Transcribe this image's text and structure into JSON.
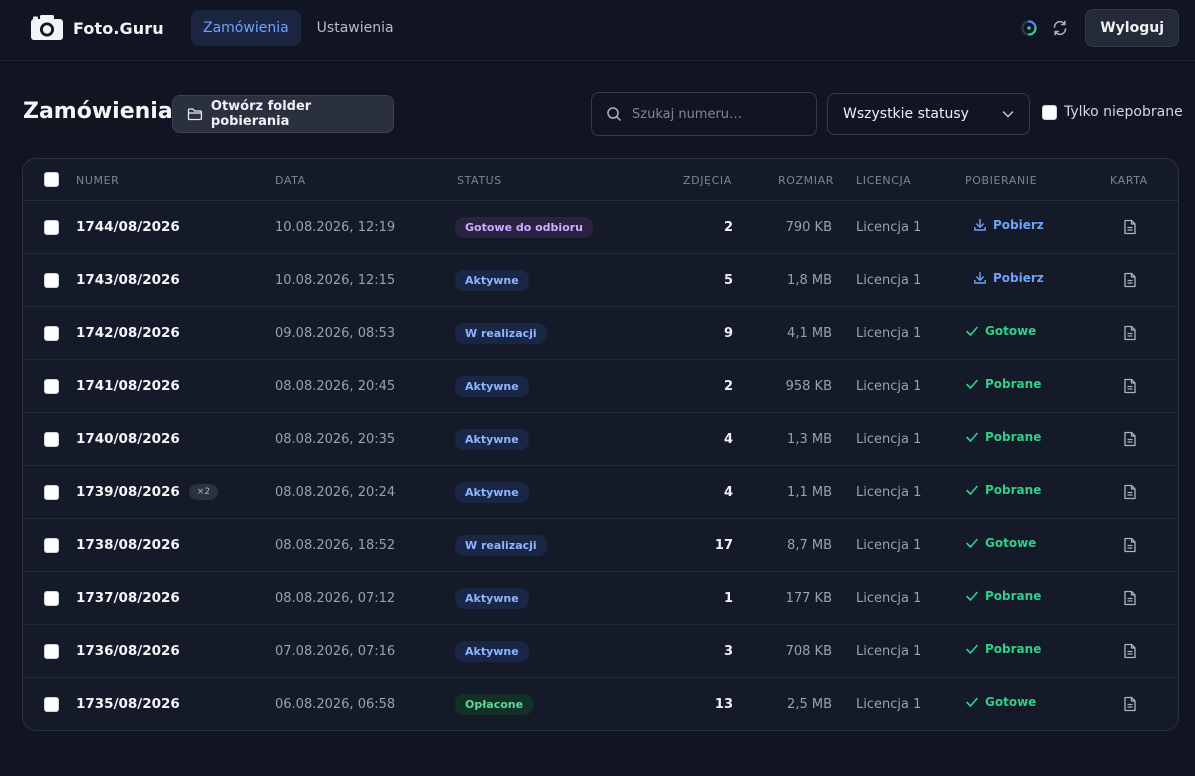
{
  "header": {
    "brand": "Foto.Guru",
    "nav": [
      {
        "label": "Zamówienia",
        "active": true
      },
      {
        "label": "Ustawienia",
        "active": false
      }
    ],
    "logout_label": "Wyloguj"
  },
  "toolbar": {
    "title": "Zamówienia",
    "folder_button": "Otwórz folder pobierania",
    "search_placeholder": "Szukaj numeru…",
    "status_filter": "Wszystkie statusy",
    "only_not_downloaded": "Tylko niepobrane"
  },
  "table": {
    "columns": [
      "NUMER",
      "DATA",
      "STATUS",
      "ZDJĘCIA",
      "ROZMIAR",
      "LICENCJA",
      "POBIERANIE",
      "KARTA"
    ],
    "rows": [
      {
        "number": "1744/08/2026",
        "date": "10.08.2026, 12:19",
        "status": "Gotowe do odbioru",
        "status_type": "ready",
        "photos": "2",
        "size": "790 KB",
        "license": "Licencja 1",
        "download": "Pobierz",
        "download_type": "action"
      },
      {
        "number": "1743/08/2026",
        "date": "10.08.2026, 12:15",
        "status": "Aktywne",
        "status_type": "active",
        "photos": "5",
        "size": "1,8 MB",
        "license": "Licencja 1",
        "download": "Pobierz",
        "download_type": "action"
      },
      {
        "number": "1742/08/2026",
        "date": "09.08.2026, 08:53",
        "status": "W realizacji",
        "status_type": "active",
        "photos": "9",
        "size": "4,1 MB",
        "license": "Licencja 1",
        "download": "Gotowe",
        "download_type": "done"
      },
      {
        "number": "1741/08/2026",
        "date": "08.08.2026, 20:45",
        "status": "Aktywne",
        "status_type": "active",
        "photos": "2",
        "size": "958 KB",
        "license": "Licencja 1",
        "download": "Pobrane",
        "download_type": "done"
      },
      {
        "number": "1740/08/2026",
        "date": "08.08.2026, 20:35",
        "status": "Aktywne",
        "status_type": "active",
        "photos": "4",
        "size": "1,3 MB",
        "license": "Licencja 1",
        "download": "Pobrane",
        "download_type": "done"
      },
      {
        "number": "1739/08/2026",
        "multi": "×2",
        "date": "08.08.2026, 20:24",
        "status": "Aktywne",
        "status_type": "active",
        "photos": "4",
        "size": "1,1 MB",
        "license": "Licencja 1",
        "download": "Pobrane",
        "download_type": "done"
      },
      {
        "number": "1738/08/2026",
        "date": "08.08.2026, 18:52",
        "status": "W realizacji",
        "status_type": "active",
        "photos": "17",
        "size": "8,7 MB",
        "license": "Licencja 1",
        "download": "Gotowe",
        "download_type": "done"
      },
      {
        "number": "1737/08/2026",
        "date": "08.08.2026, 07:12",
        "status": "Aktywne",
        "status_type": "active",
        "photos": "1",
        "size": "177 KB",
        "license": "Licencja 1",
        "download": "Pobrane",
        "download_type": "done"
      },
      {
        "number": "1736/08/2026",
        "date": "07.08.2026, 07:16",
        "status": "Aktywne",
        "status_type": "active",
        "photos": "3",
        "size": "708 KB",
        "license": "Licencja 1",
        "download": "Pobrane",
        "download_type": "done"
      },
      {
        "number": "1735/08/2026",
        "date": "06.08.2026, 06:58",
        "status": "Opłacone",
        "status_type": "paid",
        "photos": "13",
        "size": "2,5 MB",
        "license": "Licencja 1",
        "download": "Gotowe",
        "download_type": "done"
      }
    ]
  },
  "colors": {
    "accent": "#6fa2ff",
    "badge_ready_bg": "#2a2240",
    "badge_ready_fg": "#c6b0ff",
    "badge_active_bg": "#1a2646",
    "badge_active_fg": "#8fb4ff",
    "badge_paid_bg": "#123025",
    "badge_paid_fg": "#5fd6a0",
    "done_green": "#2fd08a"
  },
  "icons": {
    "logo": "camera-icon",
    "spinner": "loading-spinner-icon",
    "refresh": "refresh-icon",
    "folder": "folder-icon",
    "search": "search-icon",
    "dropdown": "chevron-down-icon",
    "download": "download-icon",
    "done": "check-icon",
    "card": "document-icon"
  }
}
